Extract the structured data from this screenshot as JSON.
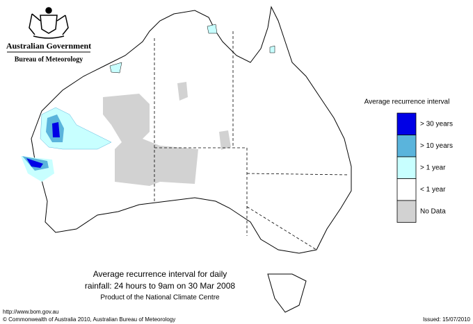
{
  "header": {
    "agency": "Australian Government",
    "bureau": "Bureau of Meteorology"
  },
  "legend": {
    "title": "Average recurrence interval",
    "items": [
      {
        "label": "> 30 years",
        "color": "#0000e6"
      },
      {
        "label": "> 10 years",
        "color": "#5ab4dc"
      },
      {
        "label": "> 1 year",
        "color": "#c8ffff"
      },
      {
        "label": "< 1 year",
        "color": "#ffffff"
      },
      {
        "label": "No Data",
        "color": "#d2d2d2"
      }
    ]
  },
  "caption": {
    "title_lines": [
      "Average recurrence interval for daily",
      "rainfall: 24 hours to 9am on 30 Mar 2008"
    ],
    "product": "Product of the National Climate Centre"
  },
  "footer": {
    "url": "http://www.bom.gov.au",
    "copyright": "© Commonwealth of Australia 2010, Australian Bureau of Meteorology",
    "issued": "Issued: 15/07/2010"
  }
}
